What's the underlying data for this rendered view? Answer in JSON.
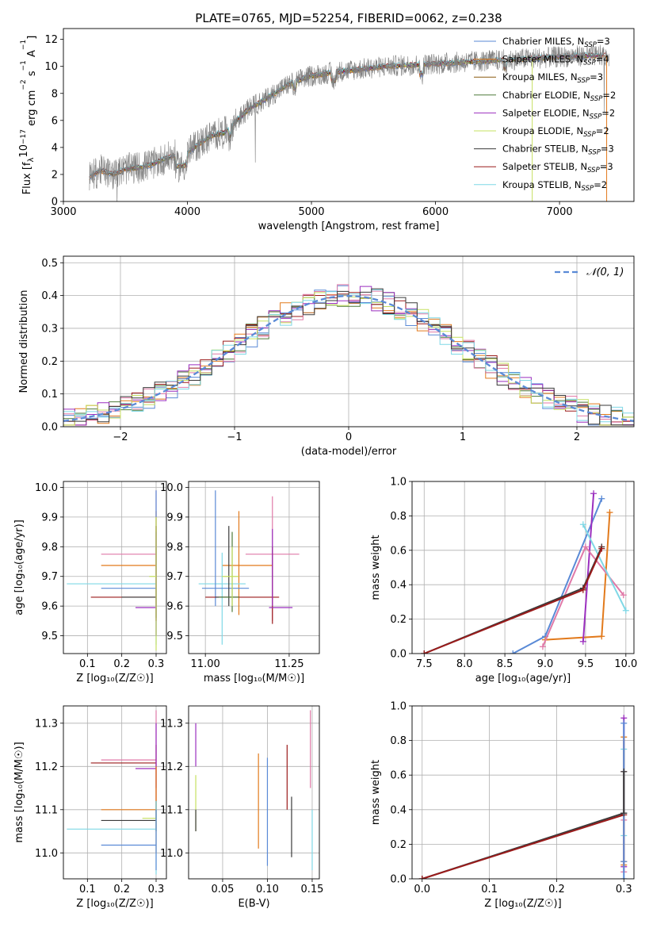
{
  "colors": {
    "blue": "#5a8ad6",
    "orange": "#e27a1c",
    "green": "#4e7a3a",
    "red": "#9b1b1b",
    "purple": "#9b2fbf",
    "pink": "#e07aa8",
    "gray": "#808080",
    "yellowgreen": "#c6e060",
    "cyan": "#7fd8e6",
    "darkgray": "#3a3a3a",
    "brown": "#8b5a10",
    "grid": "#b0b0b0"
  },
  "chart_data": [
    {
      "id": "spectrum",
      "type": "line",
      "title": "PLATE=0765, MJD=52254, FIBERID=0062, z=0.238",
      "xlabel": "wavelength [Angstrom, rest frame]",
      "ylabel_parts": [
        "Flux [f",
        "λ",
        "10",
        "−17",
        " erg cm",
        "−2",
        " s",
        "−1",
        " A",
        "−1",
        "]"
      ],
      "xlim": [
        3000,
        7600
      ],
      "ylim": [
        0,
        12.8
      ],
      "xticks": [
        "3000",
        "4000",
        "5000",
        "6000",
        "7000"
      ],
      "yticks": [
        "0",
        "2",
        "4",
        "6",
        "8",
        "10",
        "12"
      ],
      "legend_position": "upper right",
      "legend": [
        {
          "base": "Chabrier MILES, N",
          "sub": "SSP",
          "tail": "=3",
          "color": "blue"
        },
        {
          "base": "Salpeter MILES, N",
          "sub": "SSP",
          "tail": "=4",
          "color": "orange"
        },
        {
          "base": "Kroupa MILES, N",
          "sub": "SSP",
          "tail": "=3",
          "color": "brown"
        },
        {
          "base": "Chabrier ELODIE, N",
          "sub": "SSP",
          "tail": "=2",
          "color": "green"
        },
        {
          "base": "Salpeter ELODIE, N",
          "sub": "SSP",
          "tail": "=2",
          "color": "purple"
        },
        {
          "base": "Kroupa ELODIE, N",
          "sub": "SSP",
          "tail": "=2",
          "color": "yellowgreen"
        },
        {
          "base": "Chabrier STELIB, N",
          "sub": "SSP",
          "tail": "=3",
          "color": "darkgray"
        },
        {
          "base": "Salpeter STELIB, N",
          "sub": "SSP",
          "tail": "=3",
          "color": "red"
        },
        {
          "base": "Kroupa STELIB, N",
          "sub": "SSP",
          "tail": "=2",
          "color": "cyan"
        }
      ],
      "continuum": [
        [
          3210,
          1.8
        ],
        [
          3300,
          2.3
        ],
        [
          3400,
          2.0
        ],
        [
          3500,
          2.4
        ],
        [
          3600,
          2.5
        ],
        [
          3700,
          2.7
        ],
        [
          3800,
          3.1
        ],
        [
          3900,
          3.4
        ],
        [
          4000,
          3.6
        ],
        [
          4100,
          4.3
        ],
        [
          4200,
          4.9
        ],
        [
          4300,
          5.1
        ],
        [
          4400,
          6.0
        ],
        [
          4500,
          6.9
        ],
        [
          4600,
          7.4
        ],
        [
          4700,
          8.0
        ],
        [
          4800,
          8.6
        ],
        [
          4900,
          9.0
        ],
        [
          5000,
          9.3
        ],
        [
          5200,
          9.6
        ],
        [
          5400,
          9.8
        ],
        [
          5600,
          10.0
        ],
        [
          5800,
          10.1
        ],
        [
          6000,
          10.2
        ],
        [
          6200,
          10.3
        ],
        [
          6400,
          10.4
        ],
        [
          6600,
          10.5
        ],
        [
          6800,
          10.6
        ],
        [
          7000,
          10.7
        ],
        [
          7200,
          10.8
        ],
        [
          7400,
          10.8
        ]
      ]
    },
    {
      "id": "residuals",
      "type": "histogram",
      "xlabel": "(data-model)/error",
      "ylabel": "Normed distribution",
      "xlim": [
        -2.5,
        2.5
      ],
      "ylim": [
        0,
        0.52
      ],
      "xticks": [
        "−2",
        "−1",
        "0",
        "1",
        "2"
      ],
      "yticks": [
        "0.0",
        "0.1",
        "0.2",
        "0.3",
        "0.4",
        "0.5"
      ],
      "legend": "𝒩(0, 1)",
      "legend_position": "upper right",
      "bin_width": 0.1
    },
    {
      "id": "age-vs-Z",
      "type": "errorbar",
      "xlabel": "Z [log₁₀(Z/Z☉)]",
      "ylabel": "age  [log₁₀(age/yr)]",
      "xlim": [
        0.03,
        0.33
      ],
      "ylim": [
        9.44,
        10.02
      ],
      "xticks": [
        "0.1",
        "0.2",
        "0.3"
      ],
      "yticks": [
        "9.5",
        "9.6",
        "9.7",
        "9.8",
        "9.9",
        "10.0"
      ],
      "points": [
        {
          "color": "pink",
          "x": 0.3,
          "y": 9.775,
          "xerr": [
            0.14,
            0.3
          ],
          "yerr": [
            9.5,
            9.99
          ]
        },
        {
          "color": "orange",
          "x": 0.3,
          "y": 9.737,
          "xerr": [
            0.14,
            0.3
          ],
          "yerr": [
            9.55,
            9.92
          ]
        },
        {
          "color": "cyan",
          "x": 0.3,
          "y": 9.675,
          "xerr": [
            0.04,
            0.3
          ],
          "yerr": [
            9.47,
            9.85
          ]
        },
        {
          "color": "blue",
          "x": 0.3,
          "y": 9.66,
          "xerr": [
            0.14,
            0.3
          ],
          "yerr": [
            9.5,
            9.99
          ]
        },
        {
          "color": "red",
          "x": 0.3,
          "y": 9.63,
          "xerr": [
            0.11,
            0.3
          ],
          "yerr": [
            9.55,
            9.87
          ]
        },
        {
          "color": "darkgray",
          "x": 0.3,
          "y": 9.63,
          "xerr": [
            0.2,
            0.3
          ],
          "yerr": [
            9.56,
            9.87
          ]
        },
        {
          "color": "purple",
          "x": 0.3,
          "y": 9.595,
          "xerr": [
            0.24,
            0.3
          ],
          "yerr": [
            9.5,
            9.85
          ]
        },
        {
          "color": "yellowgreen",
          "x": 0.3,
          "y": 9.7,
          "xerr": [
            0.28,
            0.3
          ],
          "yerr": [
            9.45,
            9.9
          ]
        }
      ]
    },
    {
      "id": "age-vs-mass",
      "type": "errorbar",
      "xlabel": "mass [log₁₀(M/M☉)]",
      "ylabel": "",
      "xlim": [
        10.95,
        11.34
      ],
      "ylim": [
        9.44,
        10.02
      ],
      "xticks": [
        "11.00",
        "11.25"
      ],
      "yticks": [
        "9.5",
        "9.6",
        "9.7",
        "9.8",
        "9.9",
        "10.0"
      ],
      "points": [
        {
          "color": "pink",
          "x": 11.2,
          "y": 9.775,
          "xerr": [
            11.12,
            11.28
          ],
          "yerr": [
            9.55,
            9.97
          ]
        },
        {
          "color": "orange",
          "x": 11.1,
          "y": 9.737,
          "xerr": [
            11.05,
            11.2
          ],
          "yerr": [
            9.57,
            9.92
          ]
        },
        {
          "color": "cyan",
          "x": 11.05,
          "y": 9.675,
          "xerr": [
            10.98,
            11.12
          ],
          "yerr": [
            9.47,
            9.78
          ]
        },
        {
          "color": "blue",
          "x": 11.03,
          "y": 9.66,
          "xerr": [
            10.99,
            11.13
          ],
          "yerr": [
            9.6,
            9.99
          ]
        },
        {
          "color": "red",
          "x": 11.2,
          "y": 9.63,
          "xerr": [
            11.0,
            11.22
          ],
          "yerr": [
            9.54,
            9.8
          ]
        },
        {
          "color": "darkgray",
          "x": 11.07,
          "y": 9.63,
          "xerr": [
            11.03,
            11.1
          ],
          "yerr": [
            9.6,
            9.87
          ]
        },
        {
          "color": "green",
          "x": 11.08,
          "y": 9.63,
          "xerr": [
            11.04,
            11.1
          ],
          "yerr": [
            9.58,
            9.85
          ]
        },
        {
          "color": "purple",
          "x": 11.2,
          "y": 9.595,
          "xerr": [
            11.19,
            11.26
          ],
          "yerr": [
            9.6,
            9.86
          ]
        },
        {
          "color": "yellowgreen",
          "x": 11.08,
          "y": 9.7,
          "xerr": [
            11.05,
            11.1
          ],
          "yerr": [
            9.6,
            9.8
          ]
        }
      ]
    },
    {
      "id": "weight-vs-age",
      "type": "line",
      "xlabel": "age  [log₁₀(age/yr)]",
      "ylabel": "mass weight",
      "xlim": [
        7.35,
        10.1
      ],
      "ylim": [
        0,
        1
      ],
      "xticks": [
        "7.5",
        "8.0",
        "8.5",
        "9.0",
        "9.5",
        "10.0"
      ],
      "yticks": [
        "0.0",
        "0.2",
        "0.4",
        "0.6",
        "0.8",
        "1.0"
      ],
      "series": [
        {
          "color": "blue",
          "x": [
            8.6,
            9.0,
            9.7
          ],
          "y": [
            0.0,
            0.1,
            0.9
          ]
        },
        {
          "color": "orange",
          "x": [
            9.0,
            9.7,
            9.8
          ],
          "y": [
            0.08,
            0.1,
            0.82
          ]
        },
        {
          "color": "purple",
          "x": [
            9.47,
            9.6
          ],
          "y": [
            0.07,
            0.93
          ]
        },
        {
          "color": "pink",
          "x": [
            8.97,
            9.5,
            9.97
          ],
          "y": [
            0.04,
            0.62,
            0.34
          ]
        },
        {
          "color": "cyan",
          "x": [
            9.47,
            10.0
          ],
          "y": [
            0.75,
            0.25
          ]
        },
        {
          "color": "darkgray",
          "x": [
            7.5,
            9.47,
            9.7
          ],
          "y": [
            0.0,
            0.38,
            0.62
          ]
        },
        {
          "color": "red",
          "x": [
            7.5,
            9.47,
            9.7
          ],
          "y": [
            0.0,
            0.37,
            0.61
          ]
        }
      ]
    },
    {
      "id": "mass-vs-Z",
      "type": "errorbar",
      "xlabel": "Z [log₁₀(Z/Z☉)]",
      "ylabel": "mass [log₁₀(M/M☉)]",
      "xlim": [
        0.03,
        0.33
      ],
      "ylim": [
        10.94,
        11.34
      ],
      "xticks": [
        "0.1",
        "0.2",
        "0.3"
      ],
      "yticks": [
        "11.0",
        "11.1",
        "11.2",
        "11.3"
      ],
      "points": [
        {
          "color": "pink",
          "x": 0.3,
          "y": 11.215,
          "xerr": [
            0.14,
            0.3
          ],
          "yerr": [
            11.1,
            11.33
          ]
        },
        {
          "color": "red",
          "x": 0.3,
          "y": 11.208,
          "xerr": [
            0.11,
            0.3
          ],
          "yerr": [
            11.1,
            11.25
          ]
        },
        {
          "color": "purple",
          "x": 0.3,
          "y": 11.195,
          "xerr": [
            0.24,
            0.3
          ],
          "yerr": [
            11.15,
            11.3
          ]
        },
        {
          "color": "orange",
          "x": 0.3,
          "y": 11.1,
          "xerr": [
            0.14,
            0.3
          ],
          "yerr": [
            11.0,
            11.2
          ]
        },
        {
          "color": "darkgray",
          "x": 0.3,
          "y": 11.075,
          "xerr": [
            0.14,
            0.3
          ],
          "yerr": [
            11.05,
            11.12
          ]
        },
        {
          "color": "yellowgreen",
          "x": 0.3,
          "y": 11.08,
          "xerr": [
            0.26,
            0.3
          ],
          "yerr": [
            11.05,
            11.12
          ]
        },
        {
          "color": "cyan",
          "x": 0.3,
          "y": 11.055,
          "xerr": [
            0.04,
            0.3
          ],
          "yerr": [
            10.95,
            11.12
          ]
        },
        {
          "color": "blue",
          "x": 0.3,
          "y": 11.018,
          "xerr": [
            0.14,
            0.3
          ],
          "yerr": [
            10.96,
            11.1
          ]
        }
      ]
    },
    {
      "id": "mass-vs-ebv",
      "type": "errorbar",
      "xlabel": "E(B-V)",
      "ylabel": "",
      "xlim": [
        0.012,
        0.158
      ],
      "ylim": [
        10.94,
        11.34
      ],
      "xticks": [
        "0.05",
        "0.10",
        "0.15"
      ],
      "yticks": [
        "11.0",
        "11.1",
        "11.2",
        "11.3"
      ],
      "points": [
        {
          "color": "purple",
          "x": 0.02,
          "y": 11.25,
          "xerr": [
            0.02,
            0.02
          ],
          "yerr": [
            11.2,
            11.3
          ]
        },
        {
          "color": "yellowgreen",
          "x": 0.02,
          "y": 11.12,
          "xerr": [
            0.02,
            0.02
          ],
          "yerr": [
            11.05,
            11.18
          ]
        },
        {
          "color": "darkgray",
          "x": 0.02,
          "y": 11.08,
          "xerr": [
            0.02,
            0.02
          ],
          "yerr": [
            11.05,
            11.1
          ]
        },
        {
          "color": "orange",
          "x": 0.09,
          "y": 11.12,
          "xerr": [
            0.09,
            0.09
          ],
          "yerr": [
            11.01,
            11.23
          ]
        },
        {
          "color": "blue",
          "x": 0.1,
          "y": 11.1,
          "xerr": [
            0.1,
            0.1
          ],
          "yerr": [
            10.97,
            11.22
          ]
        },
        {
          "color": "red",
          "x": 0.122,
          "y": 11.2,
          "xerr": [
            0.122,
            0.122
          ],
          "yerr": [
            11.1,
            11.25
          ]
        },
        {
          "color": "darkgray",
          "x": 0.127,
          "y": 11.05,
          "xerr": [
            0.127,
            0.127
          ],
          "yerr": [
            10.99,
            11.13
          ]
        },
        {
          "color": "pink",
          "x": 0.148,
          "y": 11.25,
          "xerr": [
            0.148,
            0.148
          ],
          "yerr": [
            11.15,
            11.33
          ]
        },
        {
          "color": "cyan",
          "x": 0.15,
          "y": 11.05,
          "xerr": [
            0.15,
            0.15
          ],
          "yerr": [
            10.96,
            11.1
          ]
        }
      ]
    },
    {
      "id": "weight-vs-Z",
      "type": "line",
      "xlabel": "Z [log₁₀(Z/Z☉)]",
      "ylabel": "mass weight",
      "xlim": [
        -0.015,
        0.315
      ],
      "ylim": [
        0,
        1
      ],
      "xticks": [
        "0.0",
        "0.1",
        "0.2",
        "0.3"
      ],
      "yticks": [
        "0.0",
        "0.2",
        "0.4",
        "0.6",
        "0.8",
        "1.0"
      ],
      "series": [
        {
          "color": "darkgray",
          "x": [
            0.0,
            0.3
          ],
          "y": [
            0.0,
            0.38
          ]
        },
        {
          "color": "red",
          "x": [
            0.0,
            0.3
          ],
          "y": [
            0.0,
            0.37
          ]
        }
      ],
      "vertical_at_x": 0.3,
      "vertical_markers": [
        {
          "color": "purple",
          "y": [
            0.07,
            0.93
          ]
        },
        {
          "color": "cyan",
          "y": [
            0.25,
            0.75
          ]
        },
        {
          "color": "pink",
          "y": [
            0.04,
            0.34,
            0.62
          ]
        },
        {
          "color": "orange",
          "y": [
            0.08,
            0.1,
            0.82
          ]
        },
        {
          "color": "blue",
          "y": [
            0.0,
            0.1,
            0.9
          ]
        },
        {
          "color": "darkgray",
          "y": [
            0.38,
            0.62
          ]
        }
      ]
    }
  ]
}
